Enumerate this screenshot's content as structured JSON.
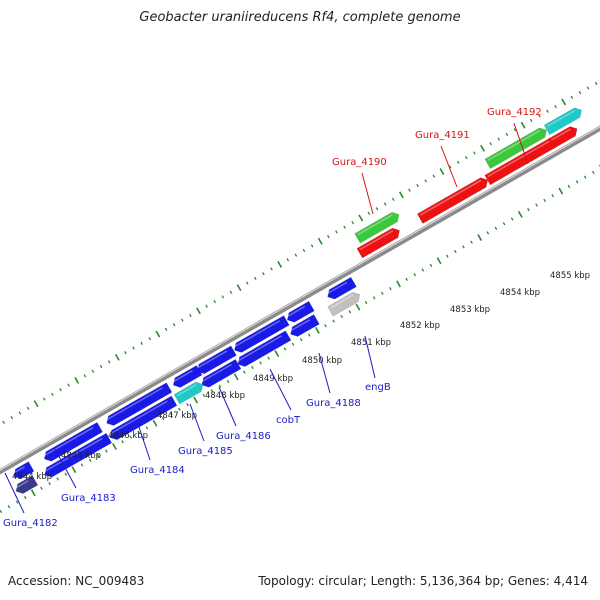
{
  "title": "Geobacter uraniireducens Rf4, complete genome",
  "footer": {
    "accession": "Accession: NC_009483",
    "summary": "Topology: circular; Length: 5,136,364 bp; Genes: 4,414"
  },
  "colors": {
    "blue": "#1a1ae6",
    "cyan": "#20c8c8",
    "green": "#3cc83c",
    "red": "#ee1111",
    "gray": "#c0c0c0",
    "dark_blue": "#3a3a8a",
    "backbone": "#8a8a8a",
    "ticks": "#2a8a2a",
    "blue_label": "#1a1acc",
    "red_label": "#dd1111"
  },
  "scale_labels": [
    "4844 kbp",
    "4845 kbp",
    "4846 kbp",
    "4847 kbp",
    "4848 kbp",
    "4849 kbp",
    "4850 kbp",
    "4851 kbp",
    "4852 kbp",
    "4853 kbp",
    "4854 kbp",
    "4855 kbp"
  ],
  "genes": {
    "forward": [
      "Gura_4190",
      "Gura_4191",
      "Gura_4192"
    ],
    "reverse": [
      "Gura_4182",
      "Gura_4183",
      "Gura_4184",
      "Gura_4185",
      "Gura_4186",
      "cobT",
      "Gura_4188",
      "engB"
    ]
  }
}
